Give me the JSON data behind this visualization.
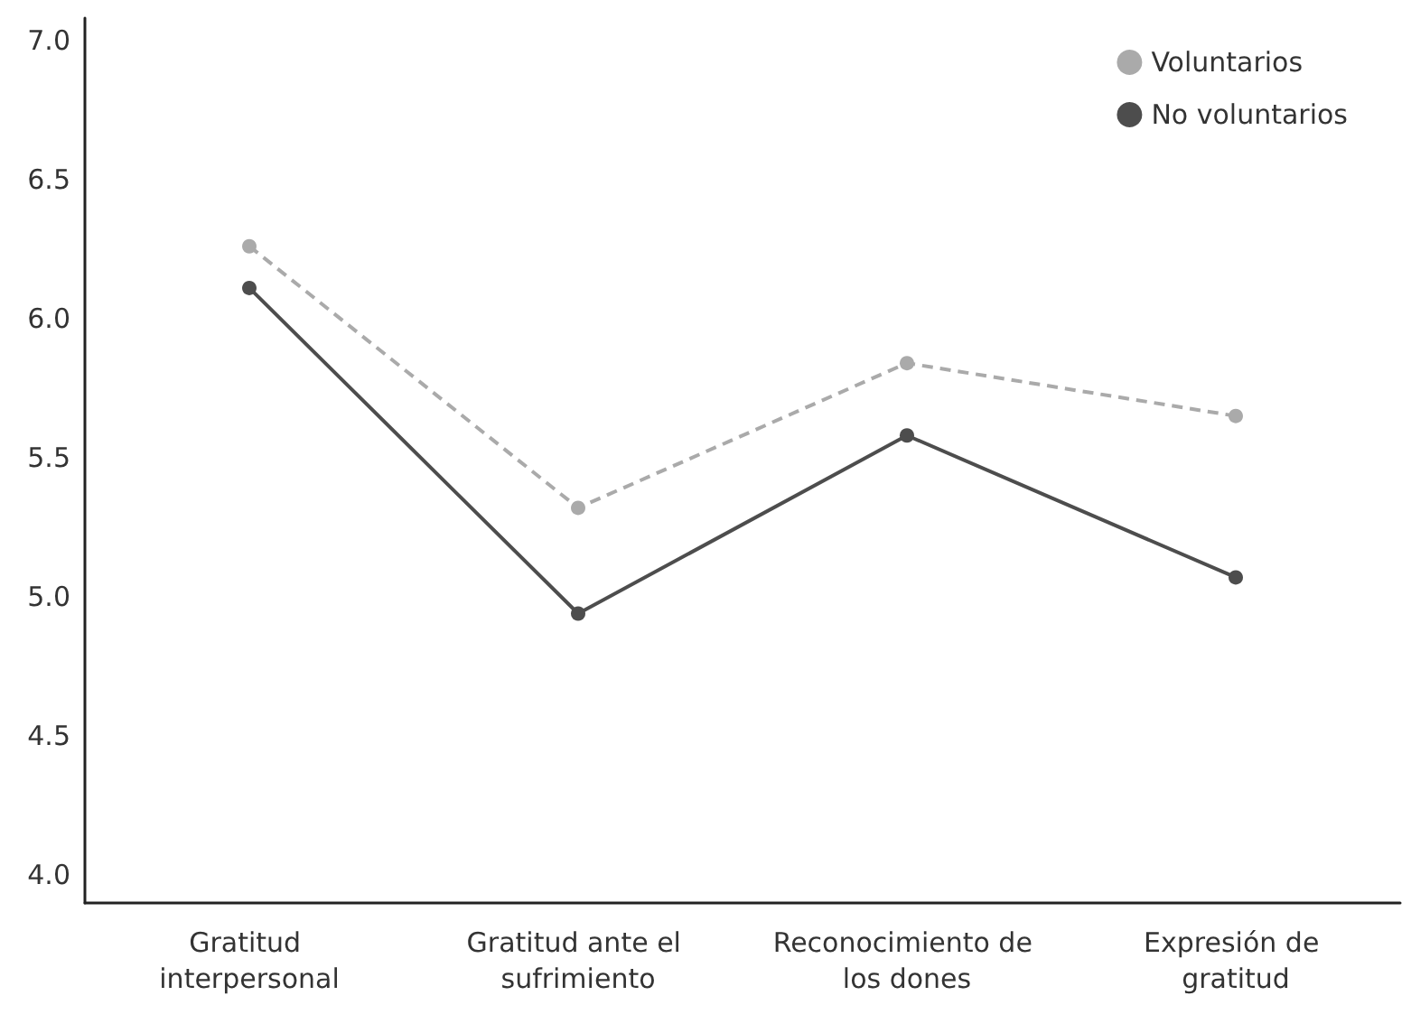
{
  "chart_data": {
    "type": "line",
    "categories": [
      "Gratitud interpersonal",
      "Gratitud ante el sufrimiento",
      "Reconocimiento de los dones",
      "Expresión de gratitud"
    ],
    "series": [
      {
        "name": "Voluntarios",
        "color": "#aaaaaa",
        "line_style": "dashed",
        "values": [
          6.26,
          5.32,
          5.84,
          5.65
        ]
      },
      {
        "name": "No voluntarios",
        "color": "#4d4d4d",
        "line_style": "solid",
        "values": [
          6.11,
          4.94,
          5.58,
          5.07
        ]
      }
    ],
    "ylim": [
      3.9,
      7.08
    ],
    "yticks": [
      {
        "value": 4,
        "label": "4.0"
      },
      {
        "value": 4.5,
        "label": "4.5"
      },
      {
        "value": 5,
        "label": "5.0"
      },
      {
        "value": 5.5,
        "label": "5.5"
      },
      {
        "value": 6,
        "label": "6.0"
      },
      {
        "value": 6.5,
        "label": "6.5"
      },
      {
        "value": 7,
        "label": "7.0"
      }
    ],
    "grid": false,
    "legend": "top right",
    "marker": "circle"
  }
}
